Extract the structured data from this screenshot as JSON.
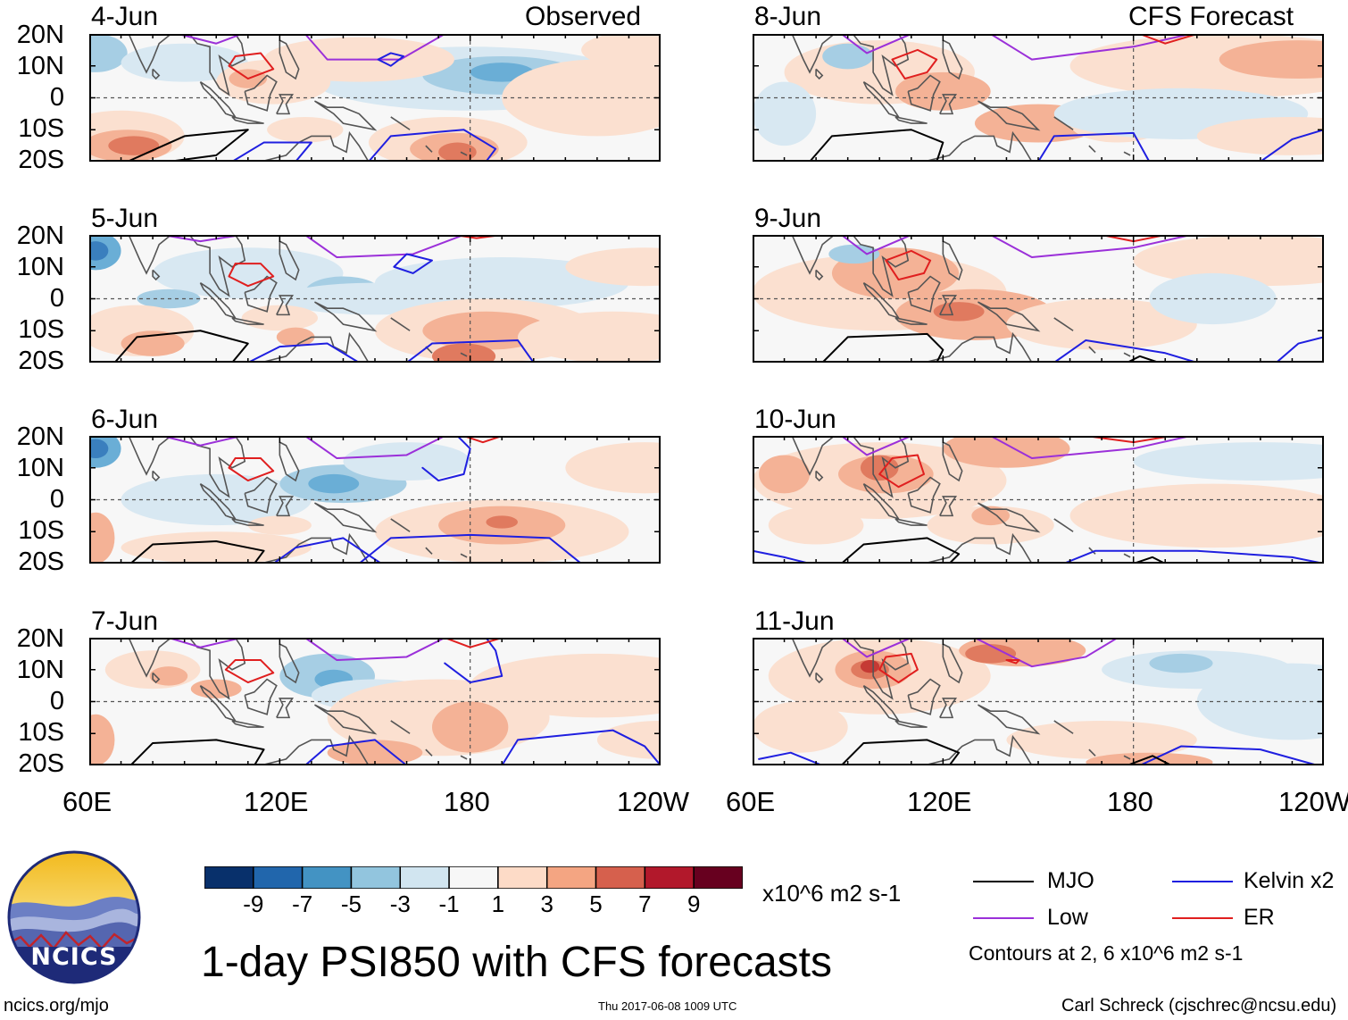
{
  "header": {
    "observed_label": "Observed",
    "forecast_label": "CFS Forecast"
  },
  "panels_observed": [
    {
      "date": "4-Jun"
    },
    {
      "date": "5-Jun"
    },
    {
      "date": "6-Jun"
    },
    {
      "date": "7-Jun"
    }
  ],
  "panels_forecast": [
    {
      "date": "8-Jun"
    },
    {
      "date": "9-Jun"
    },
    {
      "date": "10-Jun"
    },
    {
      "date": "11-Jun"
    }
  ],
  "axes": {
    "lat_ticks": [
      "20N",
      "10N",
      "0",
      "10S",
      "20S"
    ],
    "lon_ticks": [
      "60E",
      "120E",
      "180",
      "120W"
    ]
  },
  "colorbar": {
    "colors": [
      "#08306b",
      "#2166ac",
      "#4393c3",
      "#92c5de",
      "#d1e5f0",
      "#f7f7f7",
      "#fddbc7",
      "#f4a582",
      "#d6604d",
      "#b2182b",
      "#67001f"
    ],
    "tick_labels": [
      "-9",
      "-7",
      "-5",
      "-3",
      "-1",
      "1",
      "3",
      "5",
      "7",
      "9"
    ],
    "units": "x10^6 m2 s-1"
  },
  "legend": {
    "items": [
      {
        "label": "MJO",
        "color": "#000000"
      },
      {
        "label": "Kelvin x2",
        "color": "#1f1fe0"
      },
      {
        "label": "Low",
        "color": "#9b30d9"
      },
      {
        "label": "ER",
        "color": "#e01f1f"
      }
    ],
    "note": "Contours at 2, 6 x10^6 m2 s-1"
  },
  "logo": {
    "text": "NCICS"
  },
  "footer": {
    "title": "1-day PSI850 with CFS forecasts",
    "url": "ncics.org/mjo",
    "timestamp": "Thu 2017-06-08 1009 UTC",
    "author": "Carl Schreck (cjschrec@ncsu.edu)"
  }
}
